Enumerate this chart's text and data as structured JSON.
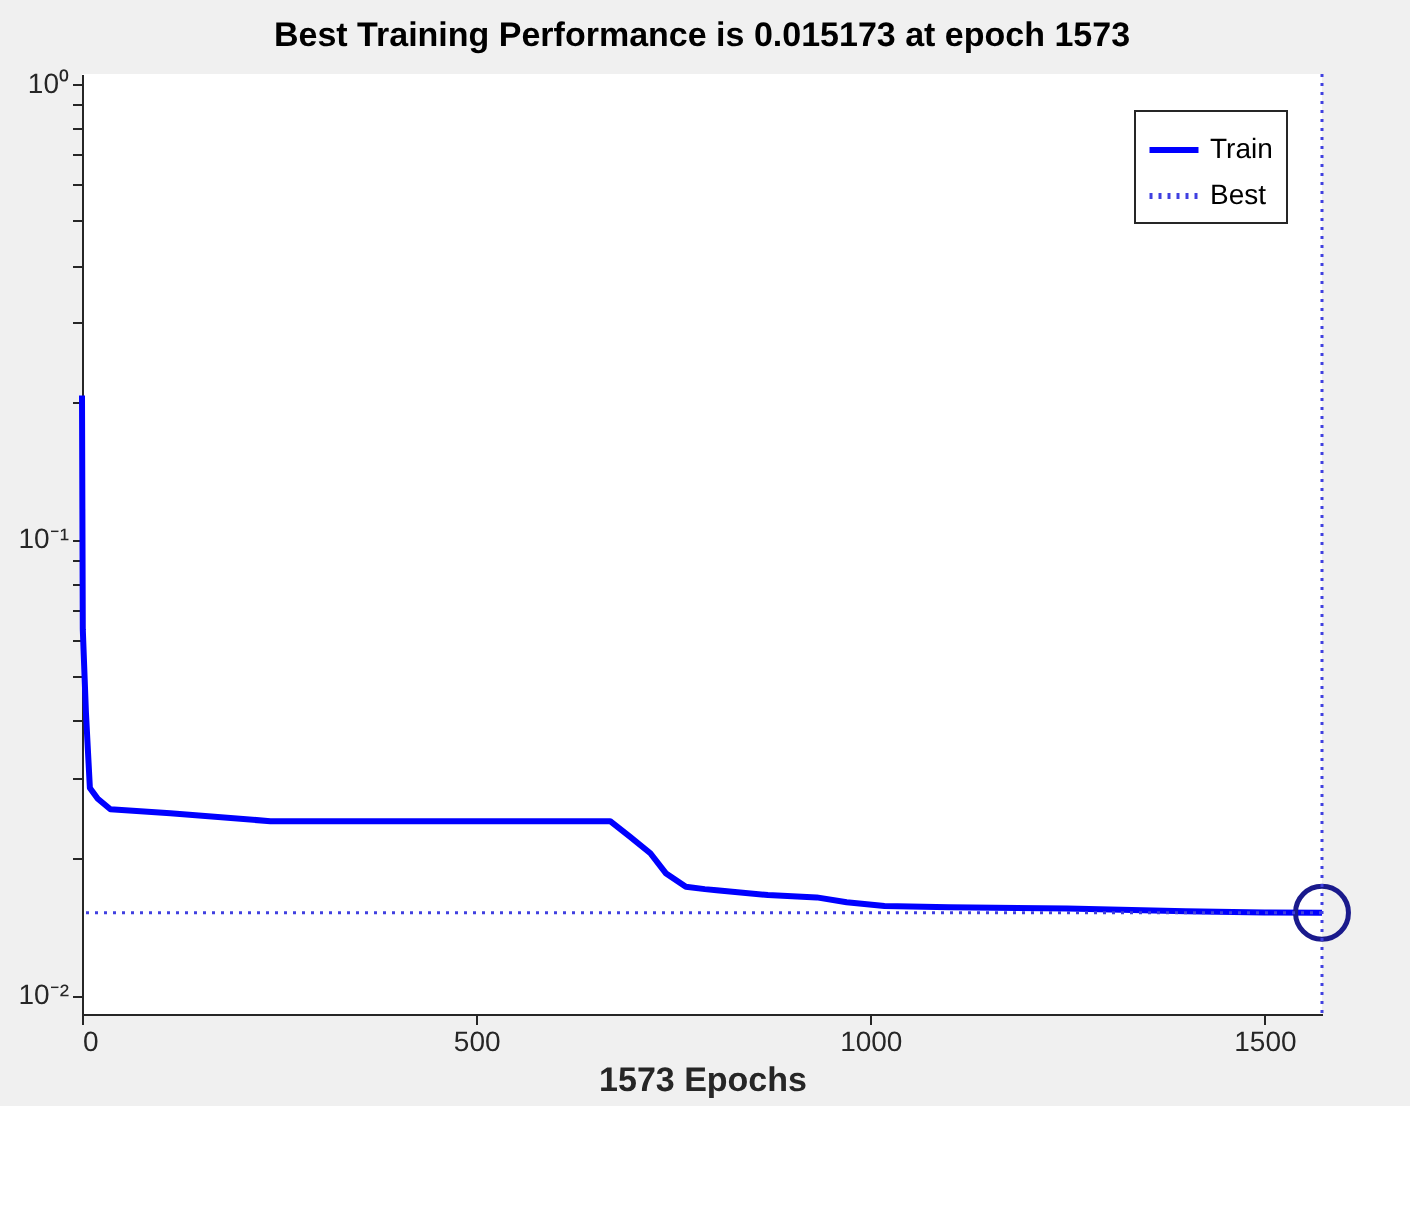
{
  "chart_data": {
    "type": "line",
    "title": "Best Training Performance is 0.015173 at epoch 1573",
    "xlabel": "1573 Epochs",
    "series": [
      {
        "name": "Train",
        "color": "#0000ff",
        "x": [
          0,
          1,
          5,
          10,
          20,
          36,
          112,
          239,
          400,
          550,
          670,
          695,
          721,
          741,
          766,
          790,
          805,
          870,
          932,
          970,
          1018,
          1100,
          1250,
          1400,
          1500,
          1573
        ],
        "values": [
          0.207,
          0.0635,
          0.0417,
          0.0285,
          0.027,
          0.0256,
          0.0251,
          0.0241,
          0.0241,
          0.0241,
          0.0241,
          0.0223,
          0.0205,
          0.0185,
          0.0173,
          0.0171,
          0.017,
          0.0166,
          0.0164,
          0.016,
          0.0157,
          0.0156,
          0.0155,
          0.0153,
          0.0152,
          0.015173
        ]
      },
      {
        "type": "scatter",
        "marker": "circle",
        "color": "#1a1a8c",
        "x": [
          1573
        ],
        "values": [
          0.015173
        ]
      }
    ],
    "ref_lines": [
      {
        "axis": "y",
        "value": 0.015173,
        "label": "Best",
        "color": "#4040e0",
        "line_style": "dotted"
      },
      {
        "axis": "x",
        "value": 1573,
        "color": "#4040e0",
        "line_style": "dotted"
      }
    ],
    "xlim": [
      0,
      1573
    ],
    "xticks": [
      0,
      500,
      1000,
      1500
    ],
    "ylim": [
      0.0091,
      1.05
    ],
    "log": true,
    "yticks": [
      {
        "value": 0.01,
        "label": "10⁻²"
      },
      {
        "value": 0.02,
        "label": null
      },
      {
        "value": 0.03,
        "label": null
      },
      {
        "value": 0.04,
        "label": null
      },
      {
        "value": 0.05,
        "label": null
      },
      {
        "value": 0.06,
        "label": null
      },
      {
        "value": 0.07,
        "label": null
      },
      {
        "value": 0.08,
        "label": null
      },
      {
        "value": 0.09,
        "label": null
      },
      {
        "value": 0.1,
        "label": "10⁻¹"
      },
      {
        "value": 0.2,
        "label": null
      },
      {
        "value": 0.3,
        "label": null
      },
      {
        "value": 0.4,
        "label": null
      },
      {
        "value": 0.5,
        "label": null
      },
      {
        "value": 0.6,
        "label": null
      },
      {
        "value": 0.7,
        "label": null
      },
      {
        "value": 0.8,
        "label": null
      },
      {
        "value": 0.9,
        "label": null
      },
      {
        "value": 1,
        "label": "10⁰"
      }
    ],
    "grid": false,
    "legend": "top right",
    "line_style": "solid",
    "marker": "none"
  }
}
